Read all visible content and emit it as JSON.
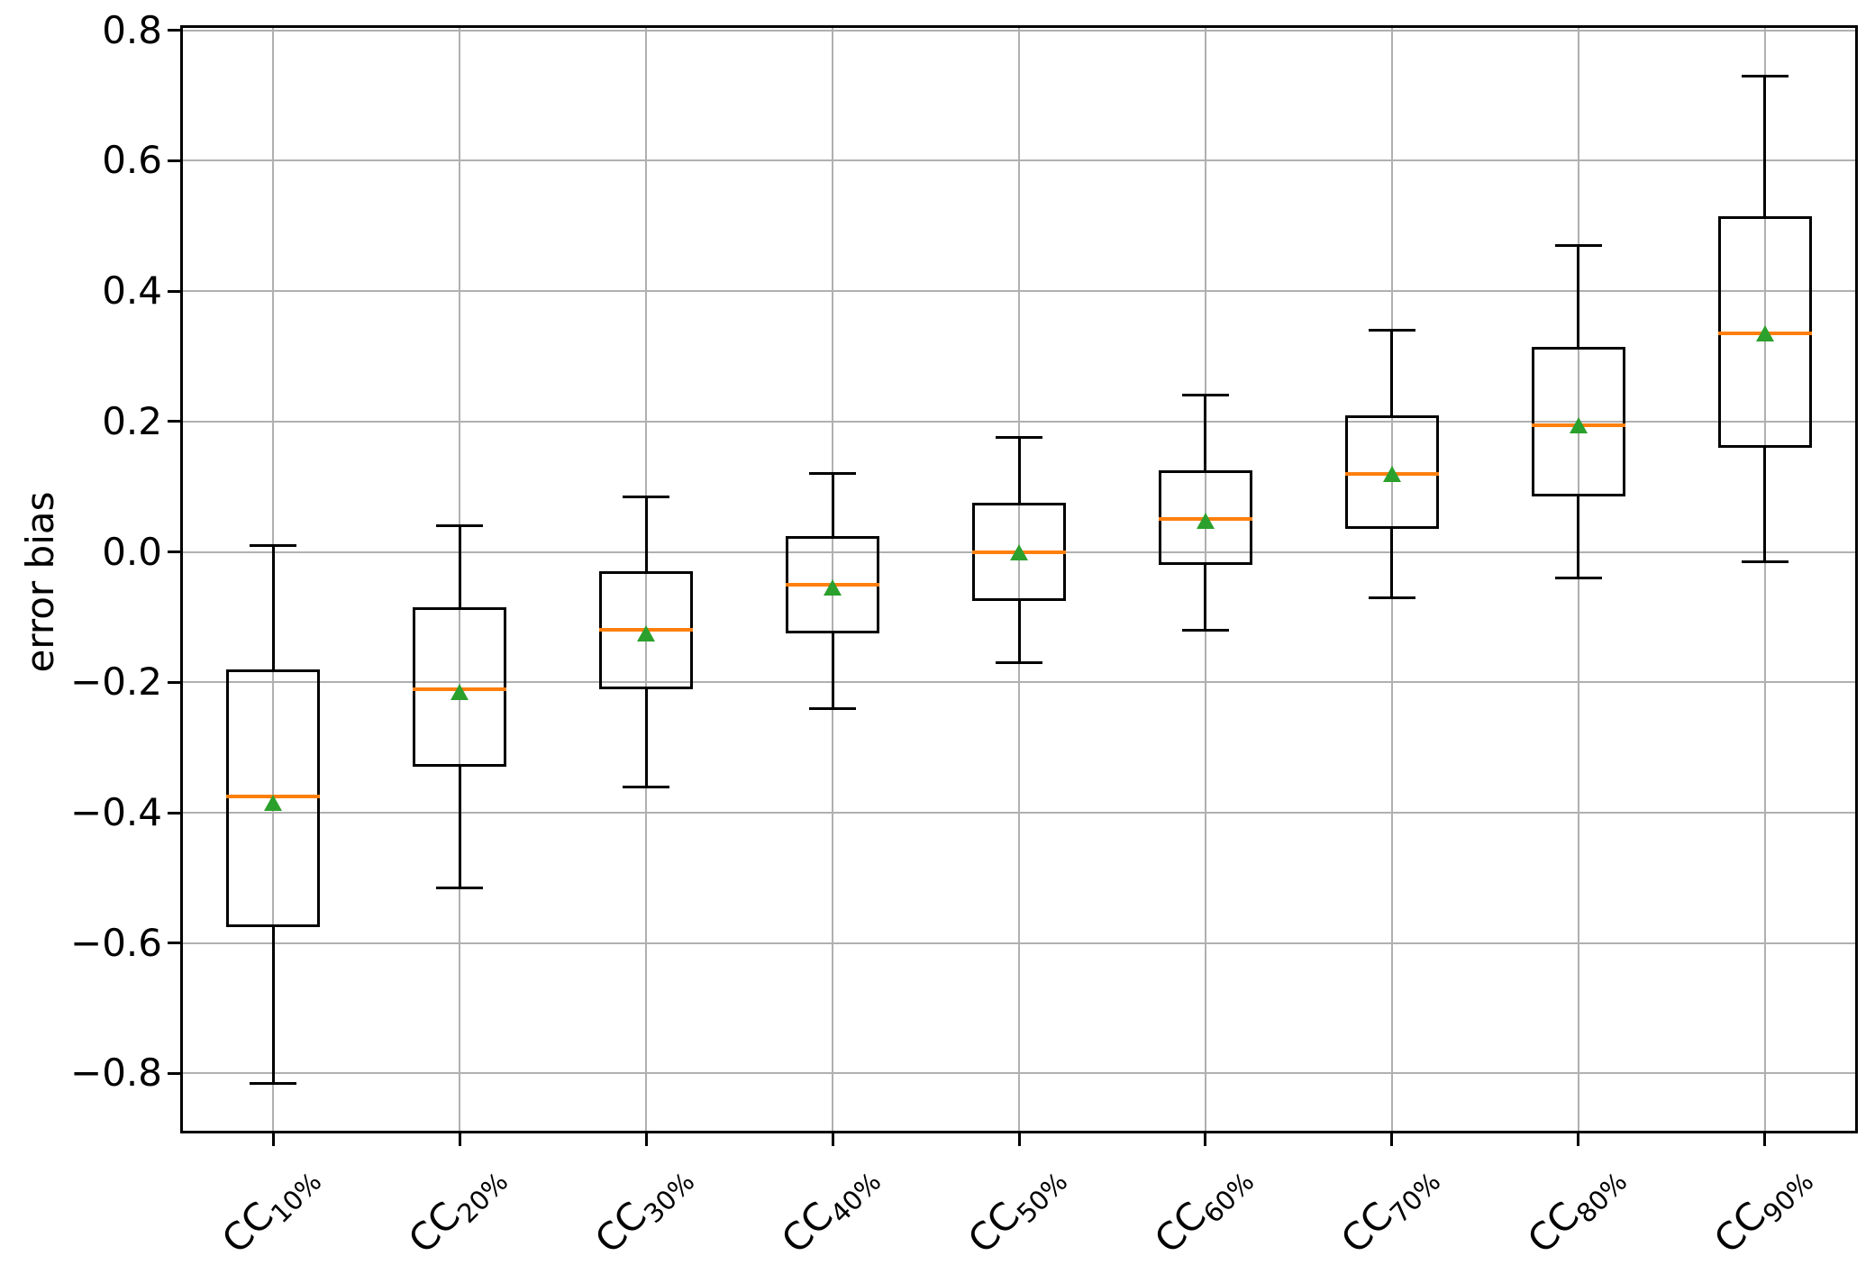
{
  "figure": {
    "background": "#ffffff"
  },
  "chart_data": {
    "type": "boxplot",
    "title": "",
    "xlabel": "",
    "ylabel": "error bias",
    "grid": true,
    "ylim": [
      -0.892,
      0.808
    ],
    "y_ticks": [
      {
        "value": 0.8,
        "label": "0.8"
      },
      {
        "value": 0.6,
        "label": "0.6"
      },
      {
        "value": 0.4,
        "label": "0.4"
      },
      {
        "value": 0.2,
        "label": "0.2"
      },
      {
        "value": 0.0,
        "label": "0.0"
      },
      {
        "value": -0.2,
        "label": "−0.2"
      },
      {
        "value": -0.4,
        "label": "−0.4"
      },
      {
        "value": -0.6,
        "label": "−0.6"
      },
      {
        "value": -0.8,
        "label": "−0.8"
      }
    ],
    "categories": [
      "CC10%",
      "CC20%",
      "CC30%",
      "CC40%",
      "CC50%",
      "CC60%",
      "CC70%",
      "CC80%",
      "CC90%"
    ],
    "boxes": [
      {
        "label": "CC10%",
        "base": "CC",
        "sub": "10%",
        "whisker_low": -0.815,
        "q1": -0.575,
        "median": -0.375,
        "q3": -0.18,
        "whisker_high": 0.01,
        "mean": -0.385
      },
      {
        "label": "CC20%",
        "base": "CC",
        "sub": "20%",
        "whisker_low": -0.515,
        "q1": -0.33,
        "median": -0.21,
        "q3": -0.085,
        "whisker_high": 0.04,
        "mean": -0.215
      },
      {
        "label": "CC30%",
        "base": "CC",
        "sub": "30%",
        "whisker_low": -0.36,
        "q1": -0.21,
        "median": -0.12,
        "q3": -0.03,
        "whisker_high": 0.085,
        "mean": -0.125
      },
      {
        "label": "CC40%",
        "base": "CC",
        "sub": "40%",
        "whisker_low": -0.24,
        "q1": -0.125,
        "median": -0.05,
        "q3": 0.025,
        "whisker_high": 0.12,
        "mean": -0.055
      },
      {
        "label": "CC50%",
        "base": "CC",
        "sub": "50%",
        "whisker_low": -0.17,
        "q1": -0.075,
        "median": 0.0,
        "q3": 0.075,
        "whisker_high": 0.175,
        "mean": 0.0
      },
      {
        "label": "CC60%",
        "base": "CC",
        "sub": "60%",
        "whisker_low": -0.12,
        "q1": -0.02,
        "median": 0.05,
        "q3": 0.125,
        "whisker_high": 0.24,
        "mean": 0.048
      },
      {
        "label": "CC70%",
        "base": "CC",
        "sub": "70%",
        "whisker_low": -0.07,
        "q1": 0.035,
        "median": 0.12,
        "q3": 0.21,
        "whisker_high": 0.34,
        "mean": 0.12
      },
      {
        "label": "CC80%",
        "base": "CC",
        "sub": "80%",
        "whisker_low": -0.04,
        "q1": 0.085,
        "median": 0.195,
        "q3": 0.315,
        "whisker_high": 0.47,
        "mean": 0.195
      },
      {
        "label": "CC90%",
        "base": "CC",
        "sub": "90%",
        "whisker_low": -0.015,
        "q1": 0.16,
        "median": 0.335,
        "q3": 0.515,
        "whisker_high": 0.73,
        "mean": 0.335
      }
    ],
    "mean_marker": "triangle-up",
    "colors": {
      "box_edge": "#000000",
      "whisker": "#000000",
      "median": "#ff7f0e",
      "mean": "#2ca02c",
      "grid": "#b0b0b0",
      "text": "#000000",
      "background": "#ffffff"
    }
  }
}
